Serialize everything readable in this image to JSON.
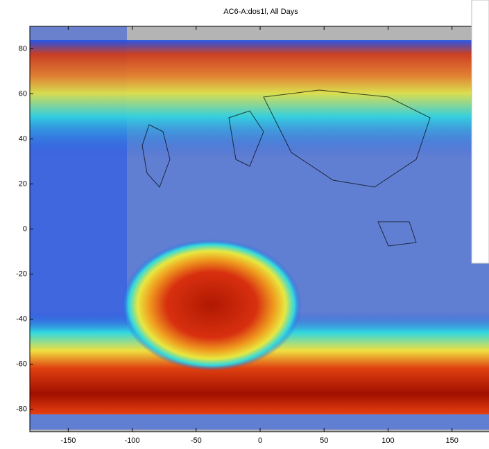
{
  "chart_data": {
    "type": "map",
    "title": "AC6-A:dos1l, All Days",
    "xlim": [
      -180,
      180
    ],
    "ylim": [
      -90,
      90
    ],
    "xticks": [
      -150,
      -100,
      -50,
      0,
      50,
      100,
      150
    ],
    "yticks": [
      -80,
      -60,
      -40,
      -20,
      0,
      20,
      40,
      60,
      80
    ]
  }
}
